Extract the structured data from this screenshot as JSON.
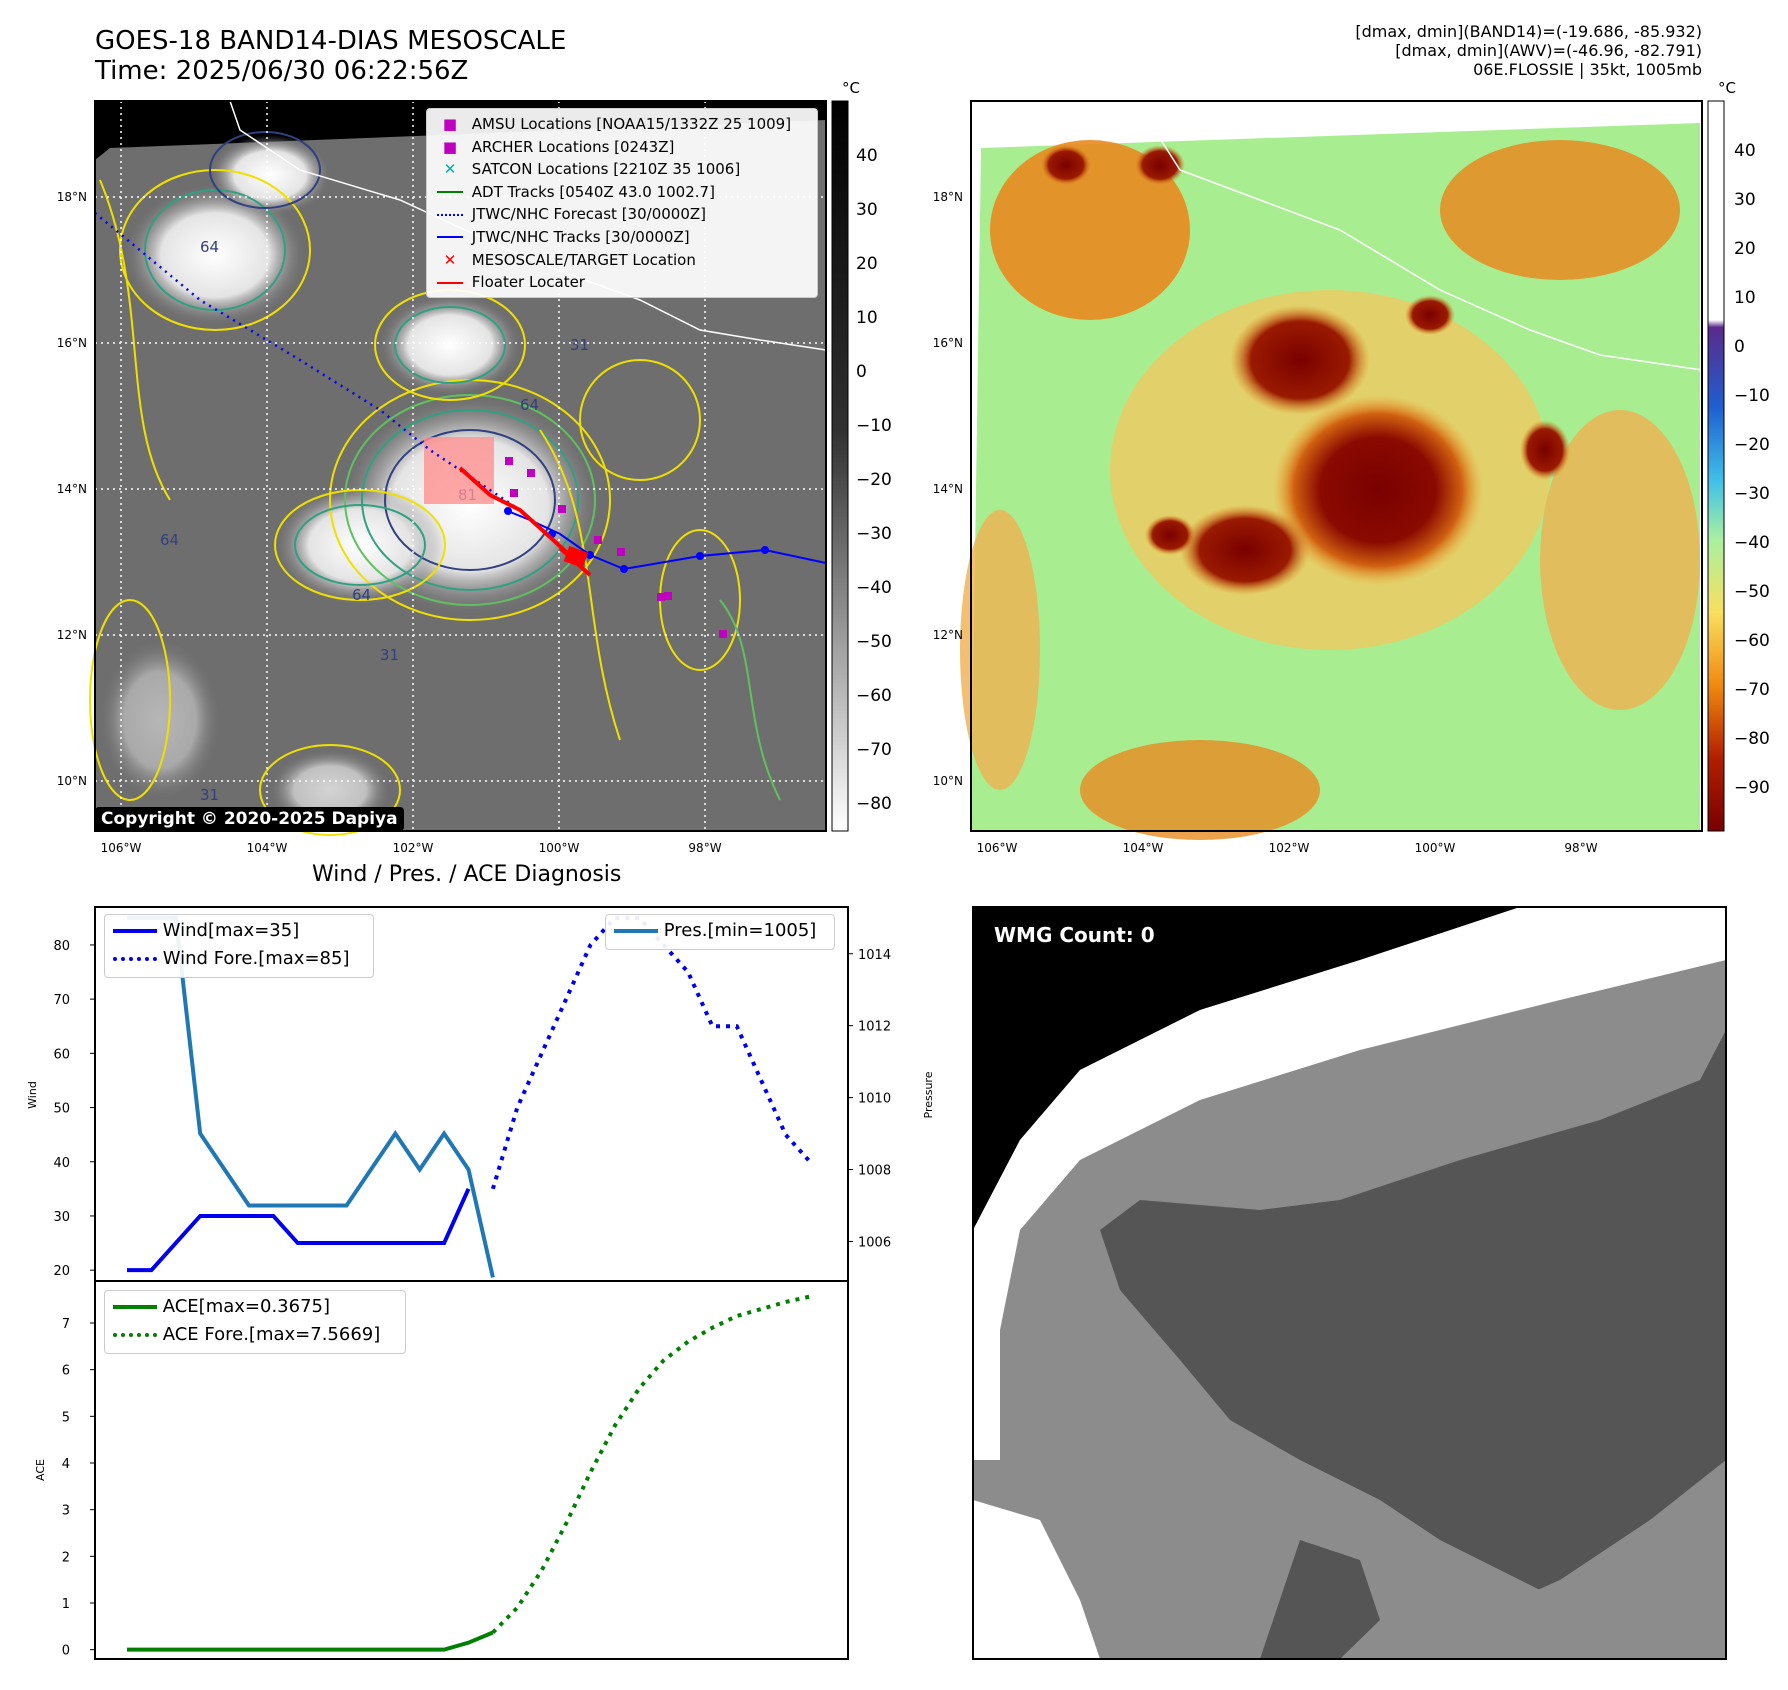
{
  "header": {
    "title_line1": "GOES-18 BAND14-DIAS MESOSCALE",
    "title_line2": "Time: 2025/06/30 06:22:56Z",
    "right_line1": "[dmax, dmin](BAND14)=(-19.686, -85.932)",
    "right_line2": "[dmax, dmin](AWV)=(-46.96, -82.791)",
    "right_line3": "06E.FLOSSIE | 35kt, 1005mb"
  },
  "map_axes": {
    "lat_labels": [
      "18°N",
      "16°N",
      "14°N",
      "12°N",
      "10°N"
    ],
    "lon_labels": [
      "106°W",
      "104°W",
      "102°W",
      "100°W",
      "98°W"
    ]
  },
  "colorbar_ir": {
    "unit": "°C",
    "ticks": [
      "40",
      "30",
      "20",
      "10",
      "0",
      "−10",
      "−20",
      "−30",
      "−40",
      "−50",
      "−60",
      "−70",
      "−80"
    ]
  },
  "colorbar_awv": {
    "unit": "°C",
    "ticks": [
      "40",
      "30",
      "20",
      "10",
      "0",
      "−10",
      "−20",
      "−30",
      "−40",
      "−50",
      "−60",
      "−70",
      "−80",
      "−90"
    ]
  },
  "map_legend": [
    {
      "label": "AMSU Locations [NOAA15/1332Z 25 1009]",
      "icon": "square-marker",
      "color": "#c000c0"
    },
    {
      "label": "ARCHER Locations [0243Z]",
      "icon": "square-marker",
      "color": "#c000c0"
    },
    {
      "label": "SATCON Locations [2210Z 35 1006]",
      "icon": "x-marker",
      "color": "#00b0b0"
    },
    {
      "label": "ADT Tracks [0540Z 43.0 1002.7]",
      "icon": "solid-line",
      "color": "#008000"
    },
    {
      "label": "JTWC/NHC Forecast [30/0000Z]",
      "icon": "dotted-line",
      "color": "#0000ff"
    },
    {
      "label": "JTWC/NHC Tracks [30/0000Z]",
      "icon": "line-dot",
      "color": "#0000ff"
    },
    {
      "label": "MESOSCALE/TARGET Location",
      "icon": "x-marker",
      "color": "#ff0000"
    },
    {
      "label": "Floater Locater",
      "icon": "solid-line",
      "color": "#ff0000"
    }
  ],
  "contour_labels": [
    "64",
    "64",
    "64",
    "81",
    "31",
    "31",
    "64",
    "31"
  ],
  "copyright": "Copyright © 2020-2025 Dapiya",
  "wmg_label": "WMG Count: 0",
  "diagnosis_title": "Wind / Pres. / ACE Diagnosis",
  "chart_data": [
    {
      "type": "line",
      "title": "Wind / Pres. / ACE Diagnosis",
      "ylabel": "Wind",
      "y2label": "Pressure",
      "ylim": [
        18,
        87
      ],
      "y2lim": [
        1004.9,
        1015.3
      ],
      "yticks": [
        20,
        30,
        40,
        50,
        60,
        70,
        80
      ],
      "y2ticks": [
        1006,
        1008,
        1010,
        1012,
        1014
      ],
      "legend_left": "upper-left",
      "legend_right": "upper-right",
      "series": [
        {
          "name": "Wind[max=35]",
          "axis": "left",
          "style": "solid",
          "color": "#0000ee",
          "x": [
            0,
            1,
            2,
            3,
            4,
            5,
            6,
            7,
            8,
            9,
            10,
            11,
            12,
            13,
            14
          ],
          "values": [
            20,
            20,
            25,
            30,
            30,
            30,
            30,
            25,
            25,
            25,
            25,
            25,
            25,
            25,
            35
          ]
        },
        {
          "name": "Wind Fore.[max=85]",
          "axis": "left",
          "style": "dotted",
          "color": "#0000ee",
          "x": [
            15,
            16,
            17,
            18,
            19,
            20,
            21,
            22,
            23,
            24,
            25,
            26,
            27,
            28
          ],
          "values": [
            35,
            50,
            60,
            70,
            80,
            85,
            85,
            80,
            75,
            65,
            65,
            55,
            45,
            40
          ]
        },
        {
          "name": "Pres.[min=1005]",
          "axis": "right",
          "style": "solid",
          "color": "#1f77b4",
          "x": [
            0,
            1,
            2,
            3,
            4,
            5,
            6,
            7,
            8,
            9,
            10,
            11,
            12,
            13,
            14,
            15
          ],
          "values": [
            1015,
            1015,
            1015,
            1009,
            1008,
            1007,
            1007,
            1007,
            1007,
            1007,
            1008,
            1009,
            1008,
            1009,
            1008,
            1005
          ]
        }
      ]
    },
    {
      "type": "line",
      "ylabel": "ACE",
      "ylim": [
        -0.2,
        7.9
      ],
      "yticks": [
        0,
        1,
        2,
        3,
        4,
        5,
        6,
        7
      ],
      "legend": "upper-left",
      "series": [
        {
          "name": "ACE[max=0.3675]",
          "style": "solid",
          "color": "#008000",
          "x": [
            0,
            1,
            2,
            3,
            4,
            5,
            6,
            7,
            8,
            9,
            10,
            11,
            12,
            13,
            14,
            15
          ],
          "values": [
            0,
            0,
            0,
            0,
            0,
            0,
            0,
            0,
            0,
            0,
            0,
            0,
            0,
            0,
            0.15,
            0.3675
          ]
        },
        {
          "name": "ACE Fore.[max=7.5669]",
          "style": "dotted",
          "color": "#008000",
          "x": [
            15,
            16,
            17,
            18,
            19,
            20,
            21,
            22,
            23,
            24,
            25,
            26,
            27,
            28
          ],
          "values": [
            0.3675,
            0.9,
            1.7,
            2.7,
            3.8,
            4.8,
            5.6,
            6.2,
            6.6,
            6.9,
            7.15,
            7.3,
            7.45,
            7.5669
          ]
        }
      ]
    }
  ]
}
